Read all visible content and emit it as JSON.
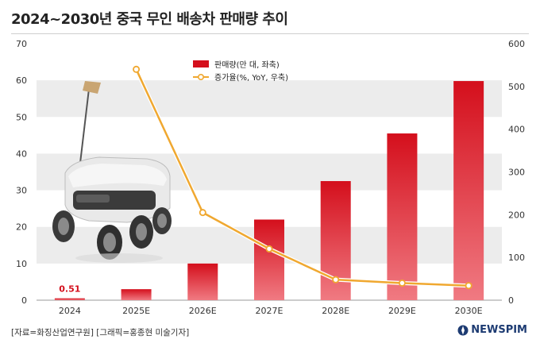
{
  "chart_data": {
    "type": "bar",
    "title": "2024~2030년 중국 무인 배송차 판매량 추이",
    "categories": [
      "2024",
      "2025E",
      "2026E",
      "2027E",
      "2028E",
      "2029E",
      "2030E"
    ],
    "series": [
      {
        "name": "판매량(만 대, 좌축)",
        "type": "bar",
        "axis": "left",
        "values": [
          0.51,
          3,
          10,
          22,
          32.5,
          45.5,
          59.8
        ],
        "color": "#d40f1c"
      },
      {
        "name": "증가율(%, YoY, 우축)",
        "type": "line",
        "axis": "right",
        "values": [
          null,
          540,
          205,
          120,
          48,
          40,
          34
        ],
        "color": "#f0a830"
      }
    ],
    "data_labels": [
      {
        "index": 0,
        "text": "0.51"
      }
    ],
    "y_left": {
      "min": 0,
      "max": 70,
      "ticks": [
        0,
        10,
        20,
        30,
        40,
        50,
        60,
        70
      ]
    },
    "y_right": {
      "min": 0,
      "max": 600,
      "ticks": [
        0,
        100,
        200,
        300,
        400,
        500,
        600
      ]
    },
    "legend_position": "top-center",
    "grid": "alternating horizontal bands"
  },
  "footer": {
    "source": "[자료=화징산업연구원] [그래픽=홍종현 미술기자]",
    "logo": "NEWSPIM"
  }
}
